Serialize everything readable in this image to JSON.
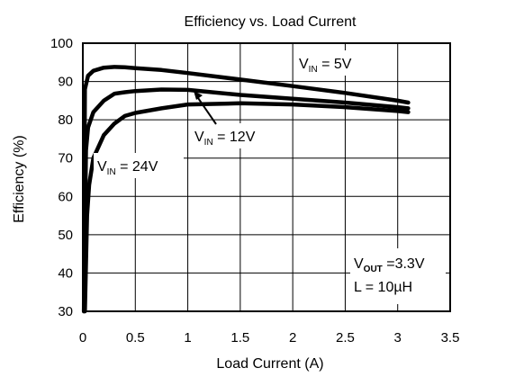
{
  "chart_data": {
    "type": "line",
    "title": "Efficiency vs. Load Current",
    "xlabel": "Load Current (A)",
    "ylabel": "Efficiency (%)",
    "xlim": [
      0,
      3.5
    ],
    "ylim": [
      30,
      100
    ],
    "xticks": [
      "0",
      "0.5",
      "1",
      "1.5",
      "2",
      "2.5",
      "3",
      "3.5"
    ],
    "yticks": [
      "30",
      "40",
      "50",
      "60",
      "70",
      "80",
      "90",
      "100"
    ],
    "grid": true,
    "series": [
      {
        "name": "VIN = 5V",
        "label_main": "V",
        "label_sub": "IN",
        "label_rest": " = 5V",
        "x": [
          0.01,
          0.02,
          0.05,
          0.1,
          0.2,
          0.3,
          0.4,
          0.5,
          0.75,
          1.0,
          1.5,
          2.0,
          2.5,
          3.0,
          3.1
        ],
        "y": [
          30,
          88,
          91.5,
          92.8,
          93.6,
          93.8,
          93.7,
          93.5,
          93.0,
          92.2,
          90.5,
          88.8,
          87.0,
          85.0,
          84.5
        ]
      },
      {
        "name": "VIN = 12V",
        "label_main": "V",
        "label_sub": "IN",
        "label_rest": " = 12V",
        "x": [
          0.01,
          0.03,
          0.05,
          0.1,
          0.2,
          0.3,
          0.4,
          0.5,
          0.75,
          1.0,
          1.5,
          2.0,
          2.5,
          3.0,
          3.1
        ],
        "y": [
          30,
          72,
          78,
          82,
          85,
          86.8,
          87.2,
          87.5,
          87.9,
          87.8,
          86.5,
          85.5,
          84.5,
          83.3,
          83.0
        ]
      },
      {
        "name": "VIN = 24V",
        "label_main": "V",
        "label_sub": "IN",
        "label_rest": " = 24V",
        "x": [
          0.02,
          0.04,
          0.06,
          0.1,
          0.2,
          0.3,
          0.4,
          0.5,
          0.75,
          1.0,
          1.5,
          2.0,
          2.5,
          3.0,
          3.1
        ],
        "y": [
          30,
          55,
          63,
          70,
          76,
          79,
          81,
          81.8,
          83.0,
          84.0,
          84.3,
          84.0,
          83.3,
          82.3,
          82.0
        ]
      }
    ],
    "annotations": {
      "vout_main": "V",
      "vout_sub": "OUT",
      "vout_rest": " =3.3V",
      "inductor": "L = 10µH"
    },
    "line_color": "#000000",
    "background": "#ffffff"
  }
}
